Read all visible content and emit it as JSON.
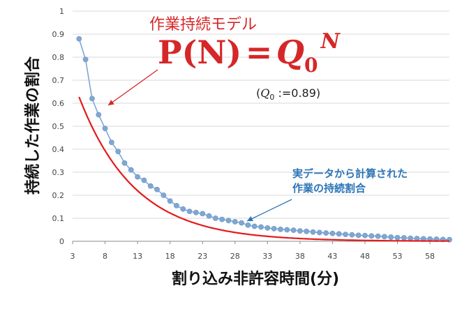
{
  "chart_data": {
    "type": "line",
    "xlabel": "割り込み非許容時間(分)",
    "ylabel": "持続した作業の割合",
    "xlim": [
      3,
      61
    ],
    "ylim": [
      0,
      1
    ],
    "x_ticks": [
      "3",
      "8",
      "13",
      "18",
      "23",
      "28",
      "33",
      "38",
      "43",
      "48",
      "53",
      "58"
    ],
    "y_ticks": [
      "0",
      "0.1",
      "0.2",
      "0.3",
      "0.4",
      "0.5",
      "0.6",
      "0.7",
      "0.8",
      "0.9",
      "1"
    ],
    "series": [
      {
        "name": "実データから計算された作業の持続割合",
        "color": "#7fa7d4",
        "x": [
          4,
          5,
          6,
          7,
          8,
          9,
          10,
          11,
          12,
          13,
          14,
          15,
          16,
          17,
          18,
          19,
          20,
          21,
          22,
          23,
          24,
          25,
          26,
          27,
          28,
          29,
          30,
          31,
          32,
          33,
          34,
          35,
          36,
          37,
          38,
          39,
          40,
          41,
          42,
          43,
          44,
          45,
          46,
          47,
          48,
          49,
          50,
          51,
          52,
          53,
          54,
          55,
          56,
          57,
          58,
          59,
          60,
          61
        ],
        "y": [
          0.88,
          0.79,
          0.62,
          0.55,
          0.49,
          0.43,
          0.39,
          0.34,
          0.31,
          0.28,
          0.265,
          0.24,
          0.225,
          0.2,
          0.175,
          0.155,
          0.14,
          0.13,
          0.125,
          0.12,
          0.11,
          0.1,
          0.095,
          0.09,
          0.085,
          0.08,
          0.07,
          0.065,
          0.062,
          0.058,
          0.055,
          0.052,
          0.05,
          0.048,
          0.045,
          0.043,
          0.04,
          0.038,
          0.036,
          0.034,
          0.032,
          0.03,
          0.028,
          0.026,
          0.025,
          0.023,
          0.022,
          0.02,
          0.018,
          0.016,
          0.015,
          0.013,
          0.012,
          0.011,
          0.01,
          0.009,
          0.008,
          0.007
        ]
      },
      {
        "name": "作業持続モデル",
        "color": "#e31a1c",
        "model": "power",
        "q0": 0.89,
        "x_range": [
          4,
          61
        ]
      }
    ],
    "annotations": {
      "model_title": "作業持続モデル",
      "formula": {
        "lhs": "P(N)",
        "equals": "=",
        "base": "Q",
        "base_sub": "0",
        "exponent": "N"
      },
      "q0_note": {
        "open": "(",
        "var": "Q",
        "sub": "0",
        "rest": " :=0.89)"
      },
      "data_note_line1": "実データから計算された",
      "data_note_line2": "作業の持続割合"
    }
  }
}
